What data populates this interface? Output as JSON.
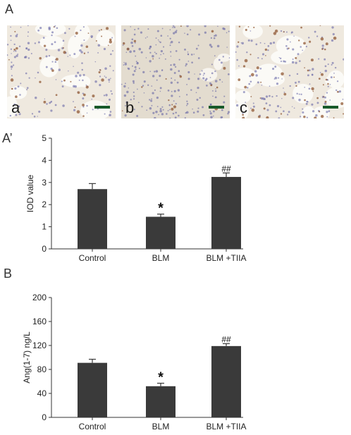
{
  "panel_labels": {
    "A": "A",
    "A_prime": "A’",
    "B": "B"
  },
  "micrographs": [
    {
      "label": "a",
      "stain_density": 0.35,
      "airspace": "open"
    },
    {
      "label": "b",
      "stain_density": 0.15,
      "airspace": "consolidated"
    },
    {
      "label": "c",
      "stain_density": 0.55,
      "airspace": "open"
    }
  ],
  "colors": {
    "bar": "#3a3a3a",
    "axis": "#333333",
    "tissue_bg": "#efe9df",
    "nuclei": "#5a5aa0",
    "stain": "#8a4f2a",
    "scale_bar": "#175a2a"
  },
  "chart_data": [
    {
      "type": "bar",
      "categories": [
        "Control",
        "BLM",
        "BLM +TIIA"
      ],
      "values": [
        2.7,
        1.45,
        3.25
      ],
      "errors": [
        0.25,
        0.12,
        0.18
      ],
      "annotations": [
        "",
        "*",
        "##"
      ],
      "ylabel": "IOD value",
      "ylim": [
        0,
        5
      ],
      "yticks": [
        0,
        1,
        2,
        3,
        4,
        5
      ],
      "grid": false
    },
    {
      "type": "bar",
      "categories": [
        "Control",
        "BLM",
        "BLM +TIIA"
      ],
      "values": [
        91,
        52,
        119
      ],
      "errors": [
        6,
        5,
        4
      ],
      "annotations": [
        "",
        "*",
        "##"
      ],
      "ylabel": "Ang(1-7) ng/L",
      "ylim": [
        0,
        200
      ],
      "yticks": [
        0,
        40,
        80,
        120,
        160,
        200
      ],
      "grid": false
    }
  ]
}
